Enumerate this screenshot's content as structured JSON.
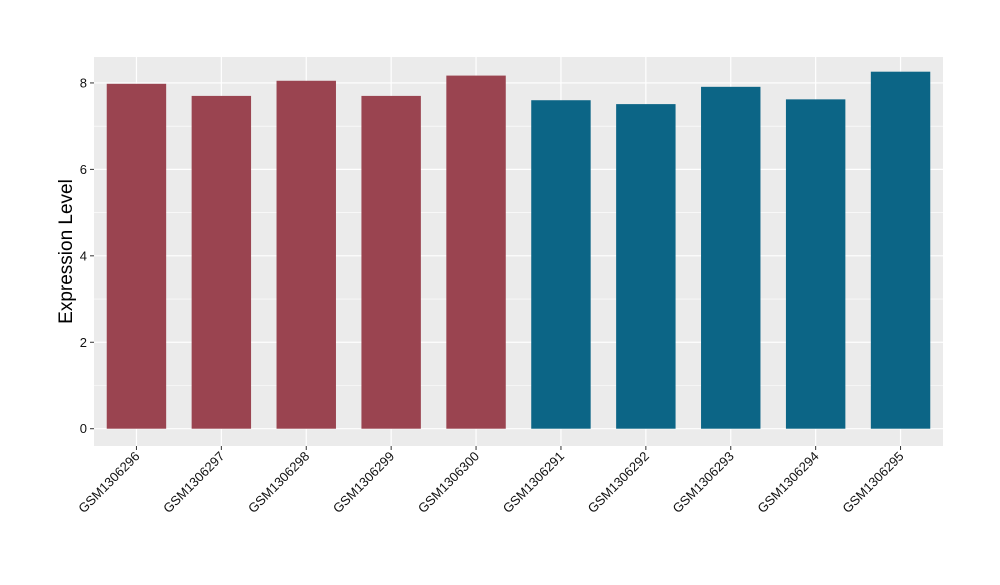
{
  "chart_data": {
    "type": "bar",
    "title": "",
    "xlabel": "",
    "ylabel": "Expression Level",
    "ylim": [
      -0.4,
      8.6
    ],
    "yticks": [
      0,
      2,
      4,
      6,
      8
    ],
    "grid": true,
    "legend": "none",
    "categories": [
      "GSM1306296",
      "GSM1306297",
      "GSM1306298",
      "GSM1306299",
      "GSM1306300",
      "GSM1306291",
      "GSM1306292",
      "GSM1306293",
      "GSM1306294",
      "GSM1306295"
    ],
    "values": [
      7.98,
      7.7,
      8.05,
      7.7,
      8.17,
      7.6,
      7.51,
      7.91,
      7.62,
      8.26
    ],
    "bar_colors": [
      "#9a4450",
      "#9a4450",
      "#9a4450",
      "#9a4450",
      "#9a4450",
      "#0c6586",
      "#0c6586",
      "#0c6586",
      "#0c6586",
      "#0c6586"
    ],
    "panel_background": "#ebebeb",
    "grid_color": "#ffffff"
  }
}
